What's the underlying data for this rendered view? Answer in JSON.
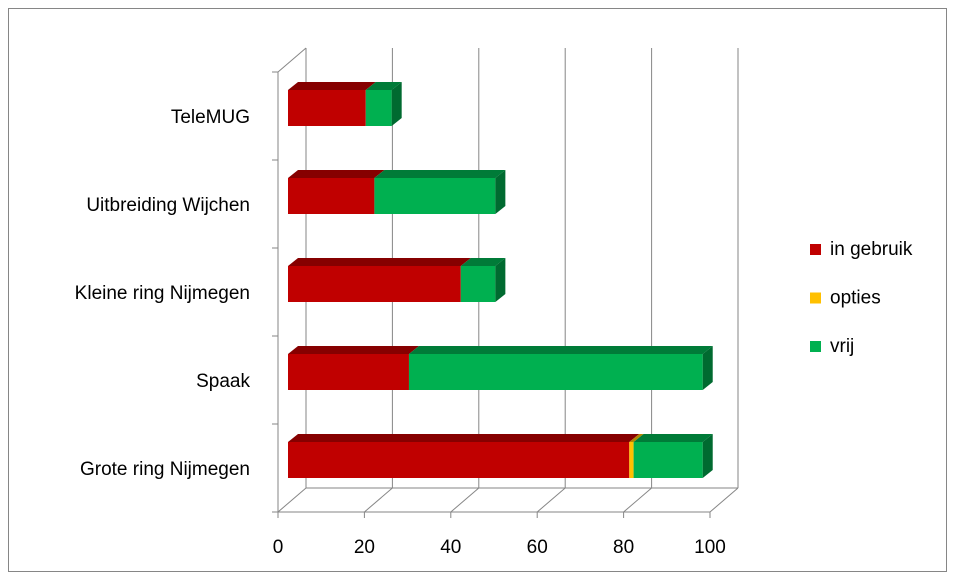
{
  "chart_data": {
    "type": "bar3d_stacked_horizontal",
    "categories": [
      "Grote ring Nijmegen",
      "Spaak",
      "Kleine ring Nijmegen",
      "Uitbreiding Wijchen",
      "TeleMUG"
    ],
    "series": [
      {
        "name": "in gebruik",
        "color": "#c00000",
        "values": [
          79,
          28,
          40,
          20,
          18
        ]
      },
      {
        "name": "opties",
        "color": "#ffc000",
        "values": [
          1,
          0,
          0,
          0,
          0
        ]
      },
      {
        "name": "vrij",
        "color": "#00b050",
        "values": [
          16,
          68,
          8,
          28,
          6
        ]
      }
    ],
    "xlim": [
      0,
      100
    ],
    "xticks": [
      0,
      20,
      40,
      60,
      80,
      100
    ],
    "grid": true,
    "legend": "right"
  }
}
